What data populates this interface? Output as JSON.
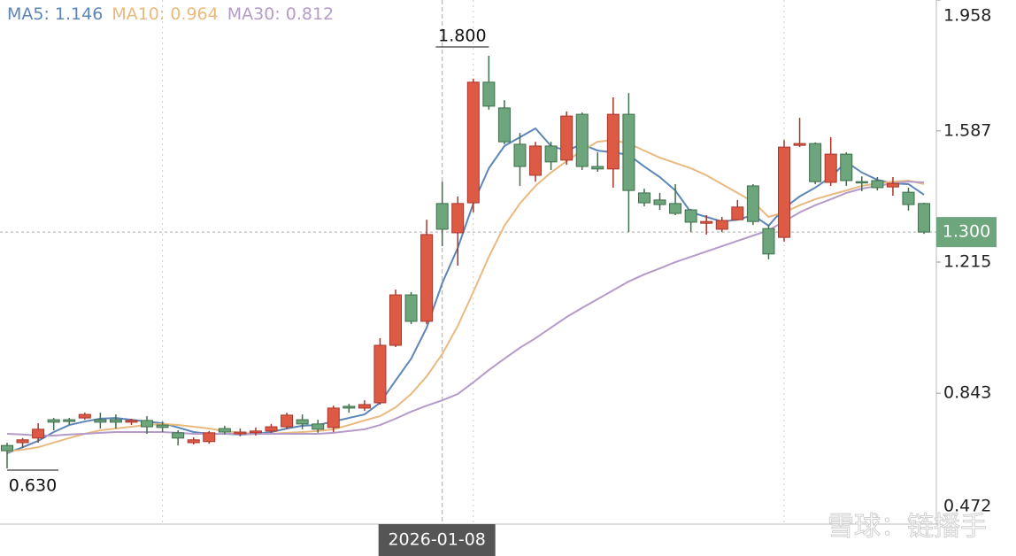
{
  "chart_data": {
    "type": "candlestick",
    "categories": [
      null,
      null,
      null,
      null,
      null,
      null,
      null,
      null,
      null,
      null,
      null,
      null,
      null,
      null,
      null,
      null,
      null,
      null,
      null,
      null,
      null,
      null,
      null,
      null,
      null,
      null,
      null,
      null,
      "2026-01-08",
      null,
      null,
      null,
      null,
      null,
      null,
      null,
      null,
      null,
      null,
      null,
      null,
      null,
      null,
      null,
      null,
      null,
      null,
      null,
      null,
      null,
      null,
      null,
      null,
      null,
      null,
      null,
      null,
      null,
      null,
      null
    ],
    "open": [
      0.695,
      0.703,
      0.716,
      0.768,
      0.768,
      0.773,
      0.768,
      0.768,
      0.761,
      0.766,
      0.753,
      0.731,
      0.703,
      0.706,
      0.743,
      0.728,
      0.731,
      0.736,
      0.748,
      0.768,
      0.756,
      0.746,
      0.806,
      0.801,
      0.816,
      0.979,
      1.122,
      1.047,
      1.381,
      1.298,
      1.383,
      1.725,
      1.652,
      1.549,
      1.461,
      1.544,
      1.504,
      1.634,
      1.486,
      1.479,
      1.634,
      1.411,
      1.391,
      1.381,
      1.363,
      1.325,
      1.308,
      1.335,
      1.431,
      1.31,
      1.285,
      1.546,
      1.551,
      1.441,
      1.521,
      1.443,
      1.446,
      1.428,
      1.413,
      1.381
    ],
    "high": [
      0.703,
      0.716,
      0.758,
      0.773,
      0.773,
      0.788,
      0.788,
      0.783,
      0.771,
      0.778,
      0.763,
      0.738,
      0.718,
      0.736,
      0.751,
      0.743,
      0.746,
      0.756,
      0.788,
      0.783,
      0.768,
      0.808,
      0.813,
      0.823,
      0.999,
      1.137,
      1.13,
      1.335,
      1.443,
      1.401,
      1.735,
      1.8,
      1.674,
      1.581,
      1.556,
      1.556,
      1.642,
      1.639,
      1.526,
      1.682,
      1.694,
      1.423,
      1.411,
      1.436,
      1.366,
      1.348,
      1.343,
      1.391,
      1.436,
      1.32,
      1.561,
      1.624,
      1.554,
      1.569,
      1.526,
      1.458,
      1.456,
      1.456,
      1.426,
      1.383
    ],
    "low": [
      0.63,
      0.688,
      0.703,
      0.738,
      0.753,
      0.768,
      0.743,
      0.743,
      0.753,
      0.728,
      0.733,
      0.695,
      0.698,
      0.7,
      0.726,
      0.721,
      0.723,
      0.731,
      0.741,
      0.741,
      0.731,
      0.733,
      0.788,
      0.793,
      0.811,
      0.974,
      1.039,
      1.039,
      1.26,
      1.205,
      1.356,
      1.647,
      1.549,
      1.431,
      1.443,
      1.476,
      1.491,
      1.476,
      1.471,
      1.426,
      1.3,
      1.373,
      1.363,
      1.348,
      1.3,
      1.293,
      1.3,
      1.333,
      1.32,
      1.223,
      1.273,
      1.541,
      1.436,
      1.431,
      1.431,
      1.416,
      1.418,
      1.403,
      1.361,
      1.295
    ],
    "close": [
      0.68,
      0.711,
      0.741,
      0.761,
      0.763,
      0.783,
      0.761,
      0.761,
      0.766,
      0.748,
      0.746,
      0.716,
      0.711,
      0.731,
      0.733,
      0.733,
      0.736,
      0.748,
      0.781,
      0.756,
      0.741,
      0.801,
      0.801,
      0.811,
      0.979,
      1.122,
      1.047,
      1.293,
      1.308,
      1.381,
      1.725,
      1.657,
      1.556,
      1.486,
      1.544,
      1.499,
      1.629,
      1.486,
      1.479,
      1.634,
      1.418,
      1.383,
      1.378,
      1.353,
      1.328,
      1.33,
      1.333,
      1.371,
      1.33,
      1.238,
      1.541,
      1.551,
      1.443,
      1.521,
      1.446,
      1.441,
      1.426,
      1.438,
      1.378,
      1.3
    ],
    "up_color": "#dd5b45",
    "up_edge": "#a8352a",
    "down_color": "#6da57c",
    "down_edge": "#3f6e4c",
    "series": [
      {
        "name": "MA5: 1.146",
        "color": "#5d86b8",
        "values": [
          0.673,
          0.69,
          0.708,
          0.733,
          0.753,
          0.763,
          0.771,
          0.773,
          0.768,
          0.763,
          0.758,
          0.746,
          0.733,
          0.728,
          0.728,
          0.726,
          0.728,
          0.733,
          0.743,
          0.751,
          0.753,
          0.763,
          0.773,
          0.783,
          0.816,
          0.879,
          0.941,
          1.029,
          1.155,
          1.255,
          1.381,
          1.481,
          1.544,
          1.569,
          1.594,
          1.544,
          1.531,
          1.549,
          1.531,
          1.526,
          1.519,
          1.486,
          1.456,
          1.418,
          1.356,
          1.343,
          1.33,
          1.335,
          1.348,
          1.318,
          1.368,
          1.401,
          1.426,
          1.456,
          1.499,
          1.469,
          1.448,
          1.438,
          1.436,
          1.406
        ]
      },
      {
        "name": "MA10: 0.964",
        "color": "#e9b97f",
        "values": [
          0.678,
          0.683,
          0.69,
          0.703,
          0.716,
          0.728,
          0.738,
          0.743,
          0.748,
          0.753,
          0.756,
          0.753,
          0.748,
          0.743,
          0.736,
          0.731,
          0.728,
          0.728,
          0.731,
          0.733,
          0.736,
          0.741,
          0.753,
          0.766,
          0.778,
          0.803,
          0.841,
          0.891,
          0.954,
          1.034,
          1.13,
          1.23,
          1.318,
          1.381,
          1.431,
          1.469,
          1.501,
          1.531,
          1.556,
          1.561,
          1.551,
          1.531,
          1.511,
          1.496,
          1.481,
          1.461,
          1.436,
          1.411,
          1.386,
          1.343,
          1.356,
          1.376,
          1.393,
          1.406,
          1.418,
          1.431,
          1.438,
          1.443,
          1.446,
          1.436
        ]
      },
      {
        "name": "MA30: 0.812",
        "color": "#b49bc8",
        "values": [
          0.728,
          0.726,
          0.723,
          0.723,
          0.726,
          0.728,
          0.731,
          0.733,
          0.733,
          0.733,
          0.733,
          0.731,
          0.728,
          0.728,
          0.728,
          0.728,
          0.728,
          0.728,
          0.728,
          0.728,
          0.728,
          0.731,
          0.736,
          0.741,
          0.753,
          0.771,
          0.791,
          0.808,
          0.823,
          0.841,
          0.874,
          0.909,
          0.941,
          0.972,
          0.999,
          1.029,
          1.059,
          1.085,
          1.11,
          1.135,
          1.16,
          1.18,
          1.197,
          1.215,
          1.23,
          1.245,
          1.26,
          1.275,
          1.29,
          1.305,
          1.33,
          1.356,
          1.376,
          1.393,
          1.411,
          1.423,
          1.431,
          1.438,
          1.443,
          1.441
        ]
      }
    ],
    "ylim": [
      0.472,
      1.958
    ],
    "yticks": [
      1.958,
      1.587,
      1.215,
      0.843,
      0.472
    ],
    "max_label": {
      "value": 1.8,
      "label": "1.800"
    },
    "min_label": {
      "value": 0.63,
      "label": "0.630"
    },
    "last_price": {
      "value": 1.3,
      "label": "1.300"
    },
    "watermark": "雪球：链播手"
  }
}
